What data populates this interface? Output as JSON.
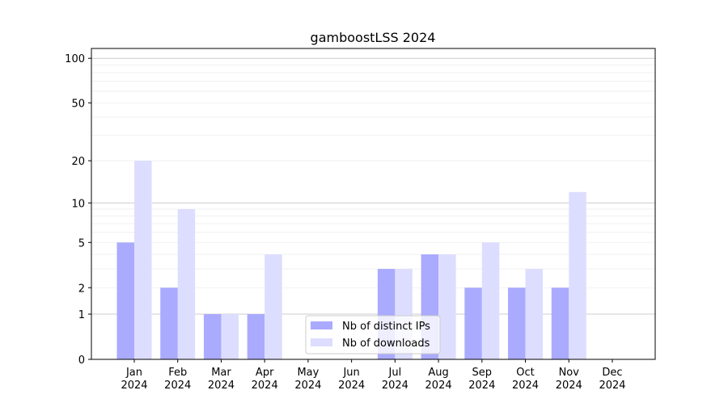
{
  "chart_data": {
    "type": "bar",
    "title": "gamboostLSS 2024",
    "xlabel": "",
    "ylabel": "",
    "yscale": "symlog (log10(1+y))",
    "ylim": [
      0,
      116
    ],
    "yticks": [
      0,
      1,
      2,
      5,
      10,
      20,
      50,
      100
    ],
    "grid": true,
    "legend_position": "bottom-center",
    "categories": [
      "Jan\n2024",
      "Feb\n2024",
      "Mar\n2024",
      "Apr\n2024",
      "May\n2024",
      "Jun\n2024",
      "Jul\n2024",
      "Aug\n2024",
      "Sep\n2024",
      "Oct\n2024",
      "Nov\n2024",
      "Dec\n2024"
    ],
    "series": [
      {
        "name": "Nb of distinct IPs",
        "color": "#aaaaff",
        "values": [
          5,
          2,
          1,
          1,
          0,
          0,
          3,
          4,
          2,
          2,
          2,
          0
        ]
      },
      {
        "name": "Nb of downloads",
        "color": "#ddddff",
        "values": [
          20,
          9,
          1,
          4,
          0,
          0,
          3,
          4,
          5,
          3,
          12,
          0
        ]
      }
    ]
  }
}
